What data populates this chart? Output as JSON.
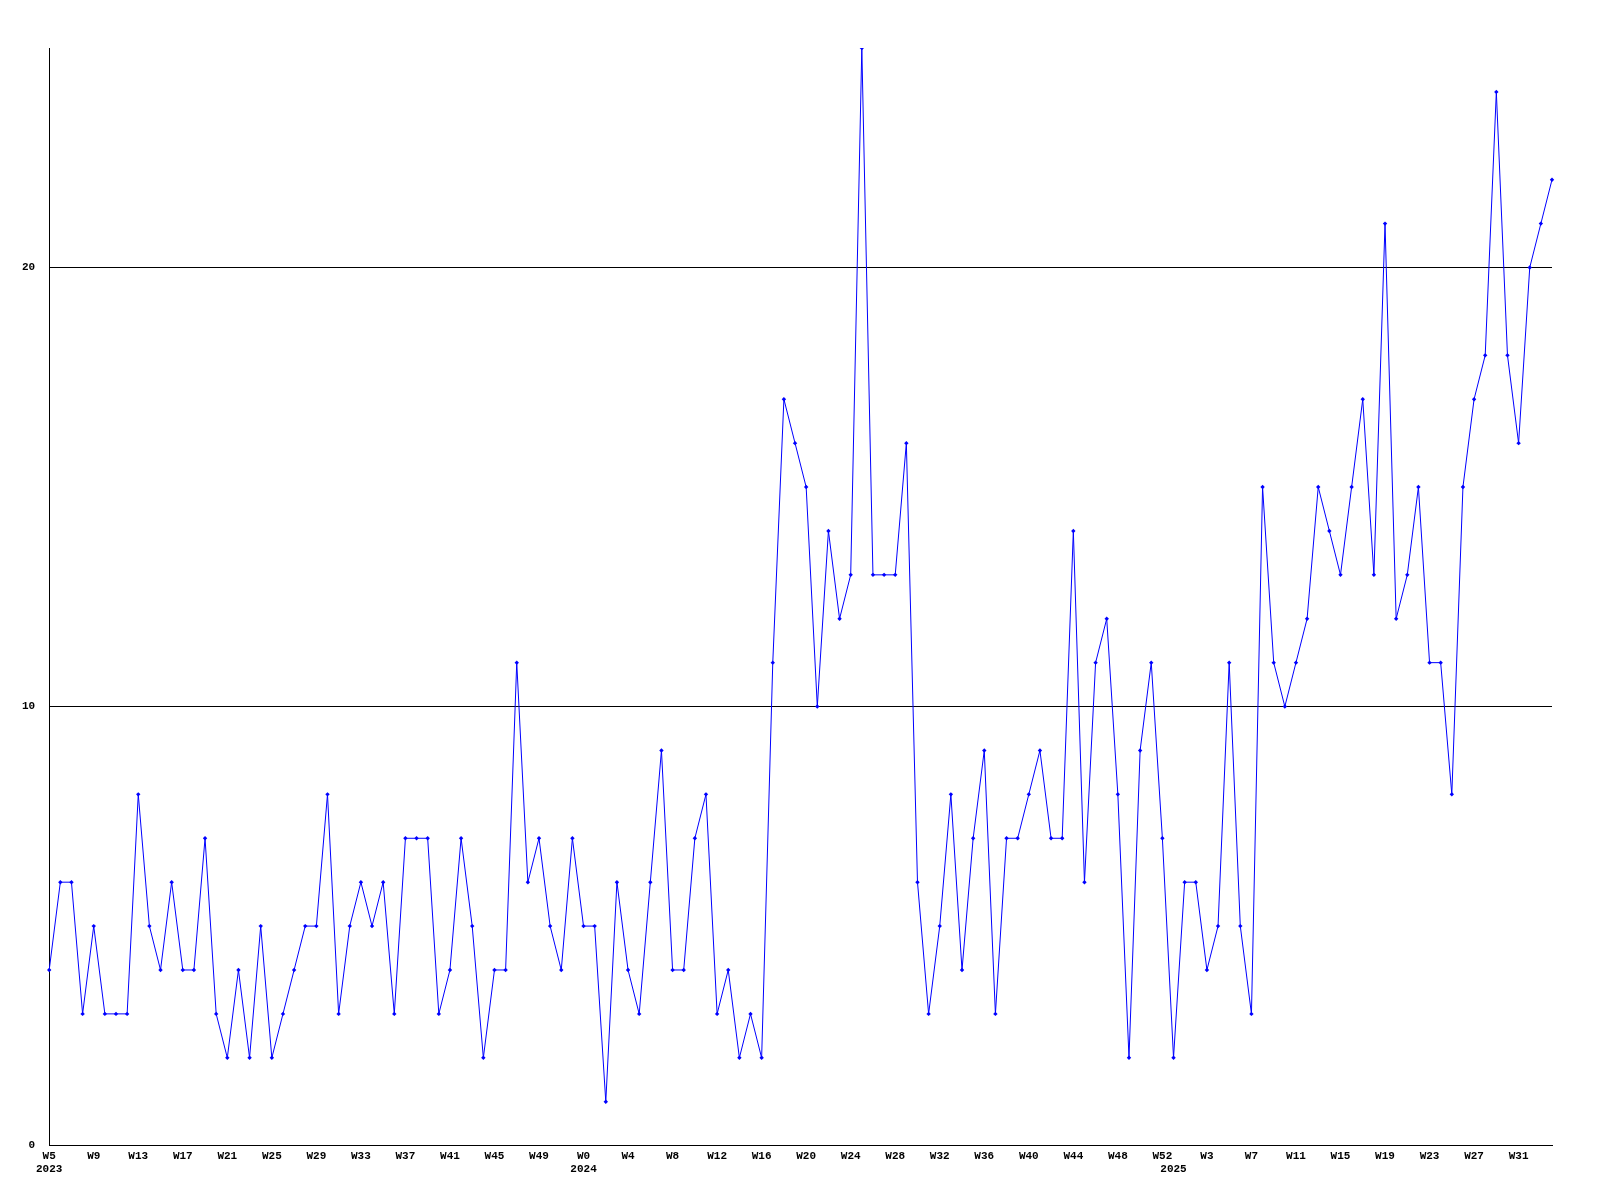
{
  "chart_data": {
    "type": "line",
    "categories": [
      "W5\n2023",
      null,
      null,
      null,
      "W9",
      null,
      null,
      null,
      "W13",
      null,
      null,
      null,
      "W17",
      null,
      null,
      null,
      "W21",
      null,
      null,
      null,
      "W25",
      null,
      null,
      null,
      "W29",
      null,
      null,
      null,
      "W33",
      null,
      null,
      null,
      "W37",
      null,
      null,
      null,
      "W41",
      null,
      null,
      null,
      "W45",
      null,
      null,
      null,
      "W49",
      null,
      null,
      null,
      "W0\n2024",
      null,
      null,
      null,
      "W4",
      null,
      null,
      null,
      "W8",
      null,
      null,
      null,
      "W12",
      null,
      null,
      null,
      "W16",
      null,
      null,
      null,
      "W20",
      null,
      null,
      null,
      "W24",
      null,
      null,
      null,
      "W28",
      null,
      null,
      null,
      "W32",
      null,
      null,
      null,
      "W36",
      null,
      null,
      null,
      "W40",
      null,
      null,
      null,
      "W44",
      null,
      null,
      null,
      "W48",
      null,
      null,
      null,
      "W52",
      "\n2025",
      null,
      null,
      "W3",
      null,
      null,
      null,
      "W7",
      null,
      null,
      null,
      "W11",
      null,
      null,
      null,
      "W15",
      null,
      null,
      null,
      "W19",
      null,
      null,
      null,
      "W23",
      null,
      null,
      null,
      "W27",
      null,
      null,
      null,
      "W31",
      null,
      null,
      null
    ],
    "series": [
      {
        "color": "#0000ff",
        "values": [
          4,
          6,
          6,
          3,
          5,
          3,
          3,
          3,
          8,
          5,
          4,
          6,
          4,
          4,
          7,
          3,
          2,
          4,
          2,
          5,
          2,
          3,
          4,
          5,
          5,
          8,
          3,
          5,
          6,
          5,
          6,
          3,
          7,
          7,
          7,
          3,
          4,
          7,
          5,
          2,
          4,
          4,
          11,
          6,
          7,
          5,
          4,
          7,
          5,
          5,
          1,
          6,
          4,
          3,
          6,
          9,
          4,
          4,
          7,
          8,
          3,
          4,
          2,
          3,
          2,
          11,
          17,
          16,
          15,
          10,
          14,
          12,
          13,
          25,
          13,
          13,
          13,
          16,
          6,
          3,
          5,
          8,
          4,
          7,
          9,
          3,
          7,
          7,
          8,
          9,
          7,
          7,
          14,
          6,
          11,
          12,
          8,
          2,
          9,
          11,
          7,
          2,
          6,
          6,
          4,
          5,
          11,
          5,
          3,
          15,
          11,
          10,
          11,
          12,
          15,
          14,
          13,
          15,
          17,
          13,
          21,
          12,
          13,
          15,
          11,
          11,
          8,
          15,
          17,
          18,
          24,
          18,
          16,
          20,
          21,
          22
        ]
      }
    ],
    "ylim": [
      0,
      25
    ],
    "yticks": [
      0,
      10,
      20
    ],
    "grid": "y",
    "marker": "diamond",
    "legend": false
  }
}
